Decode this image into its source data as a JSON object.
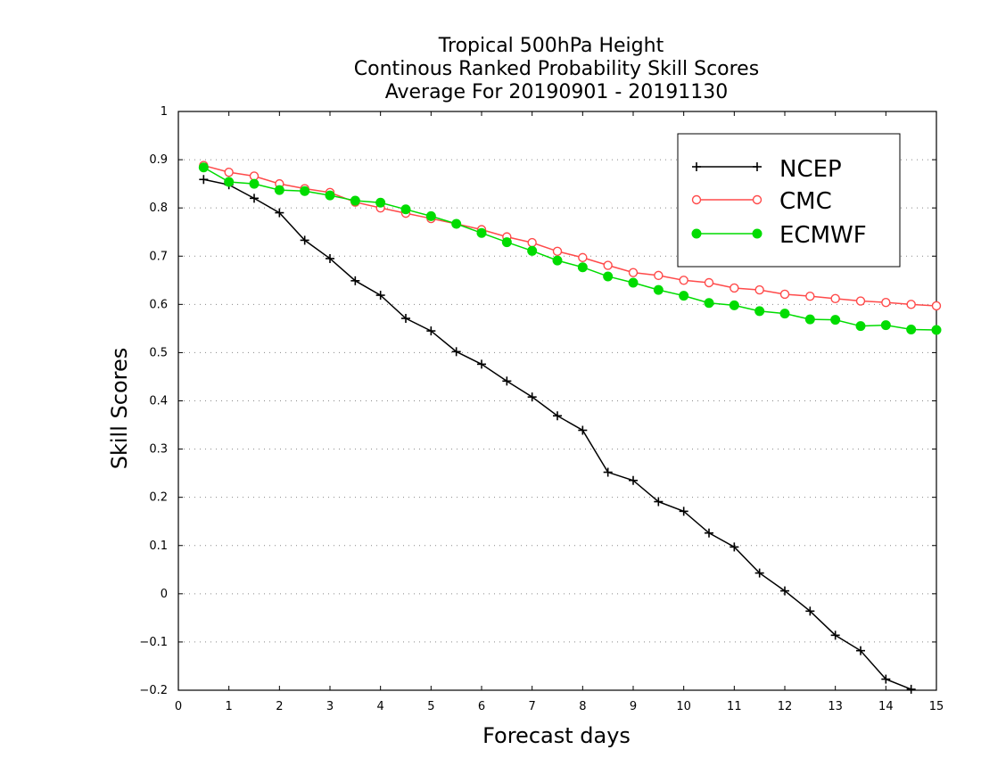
{
  "chart_data": {
    "type": "line",
    "title": [
      "Tropical 500hPa Height",
      "Continous Ranked Probability Skill Scores",
      "Average For 20190901 - 20191130"
    ],
    "xlabel": "Forecast days",
    "ylabel": "Skill Scores",
    "xlim": [
      0,
      15
    ],
    "ylim": [
      -0.2,
      1
    ],
    "xticks": [
      "0",
      "1",
      "2",
      "3",
      "4",
      "5",
      "6",
      "7",
      "8",
      "9",
      "10",
      "11",
      "12",
      "13",
      "14",
      "15"
    ],
    "yticks": [
      "−0.2",
      "−0.1",
      "0",
      "0.1",
      "0.2",
      "0.3",
      "0.4",
      "0.5",
      "0.6",
      "0.7",
      "0.8",
      "0.9",
      "1"
    ],
    "grid": "horizontal dotted",
    "legend_position": "top-right",
    "x": [
      0.5,
      1,
      1.5,
      2,
      2.5,
      3,
      3.5,
      4,
      4.5,
      5,
      5.5,
      6,
      6.5,
      7,
      7.5,
      8,
      8.5,
      9,
      9.5,
      10,
      10.5,
      11,
      11.5,
      12,
      12.5,
      13,
      13.5,
      14,
      14.5,
      15
    ],
    "series": [
      {
        "name": "NCEP",
        "color": "#000000",
        "marker": "plus",
        "values": [
          0.859,
          0.848,
          0.82,
          0.79,
          0.733,
          0.695,
          0.649,
          0.619,
          0.571,
          0.545,
          0.502,
          0.476,
          0.441,
          0.408,
          0.369,
          0.339,
          0.252,
          0.235,
          0.191,
          0.171,
          0.126,
          0.097,
          0.043,
          0.006,
          -0.036,
          -0.086,
          -0.118,
          -0.177,
          -0.198,
          null
        ]
      },
      {
        "name": "CMC",
        "color": "#ff4a4a",
        "marker": "open-circle",
        "values": [
          0.888,
          0.874,
          0.866,
          0.85,
          0.84,
          0.832,
          0.812,
          0.8,
          0.789,
          0.778,
          0.767,
          0.755,
          0.74,
          0.728,
          0.71,
          0.697,
          0.681,
          0.666,
          0.66,
          0.65,
          0.645,
          0.634,
          0.63,
          0.621,
          0.617,
          0.612,
          0.607,
          0.604,
          0.6,
          0.597
        ]
      },
      {
        "name": "ECMWF",
        "color": "#00dc00",
        "marker": "filled-circle",
        "values": [
          0.884,
          0.854,
          0.85,
          0.837,
          0.835,
          0.826,
          0.815,
          0.811,
          0.797,
          0.783,
          0.767,
          0.748,
          0.729,
          0.711,
          0.691,
          0.677,
          0.658,
          0.645,
          0.63,
          0.618,
          0.603,
          0.598,
          0.586,
          0.581,
          0.569,
          0.568,
          0.555,
          0.557,
          0.548,
          0.547
        ]
      }
    ]
  }
}
